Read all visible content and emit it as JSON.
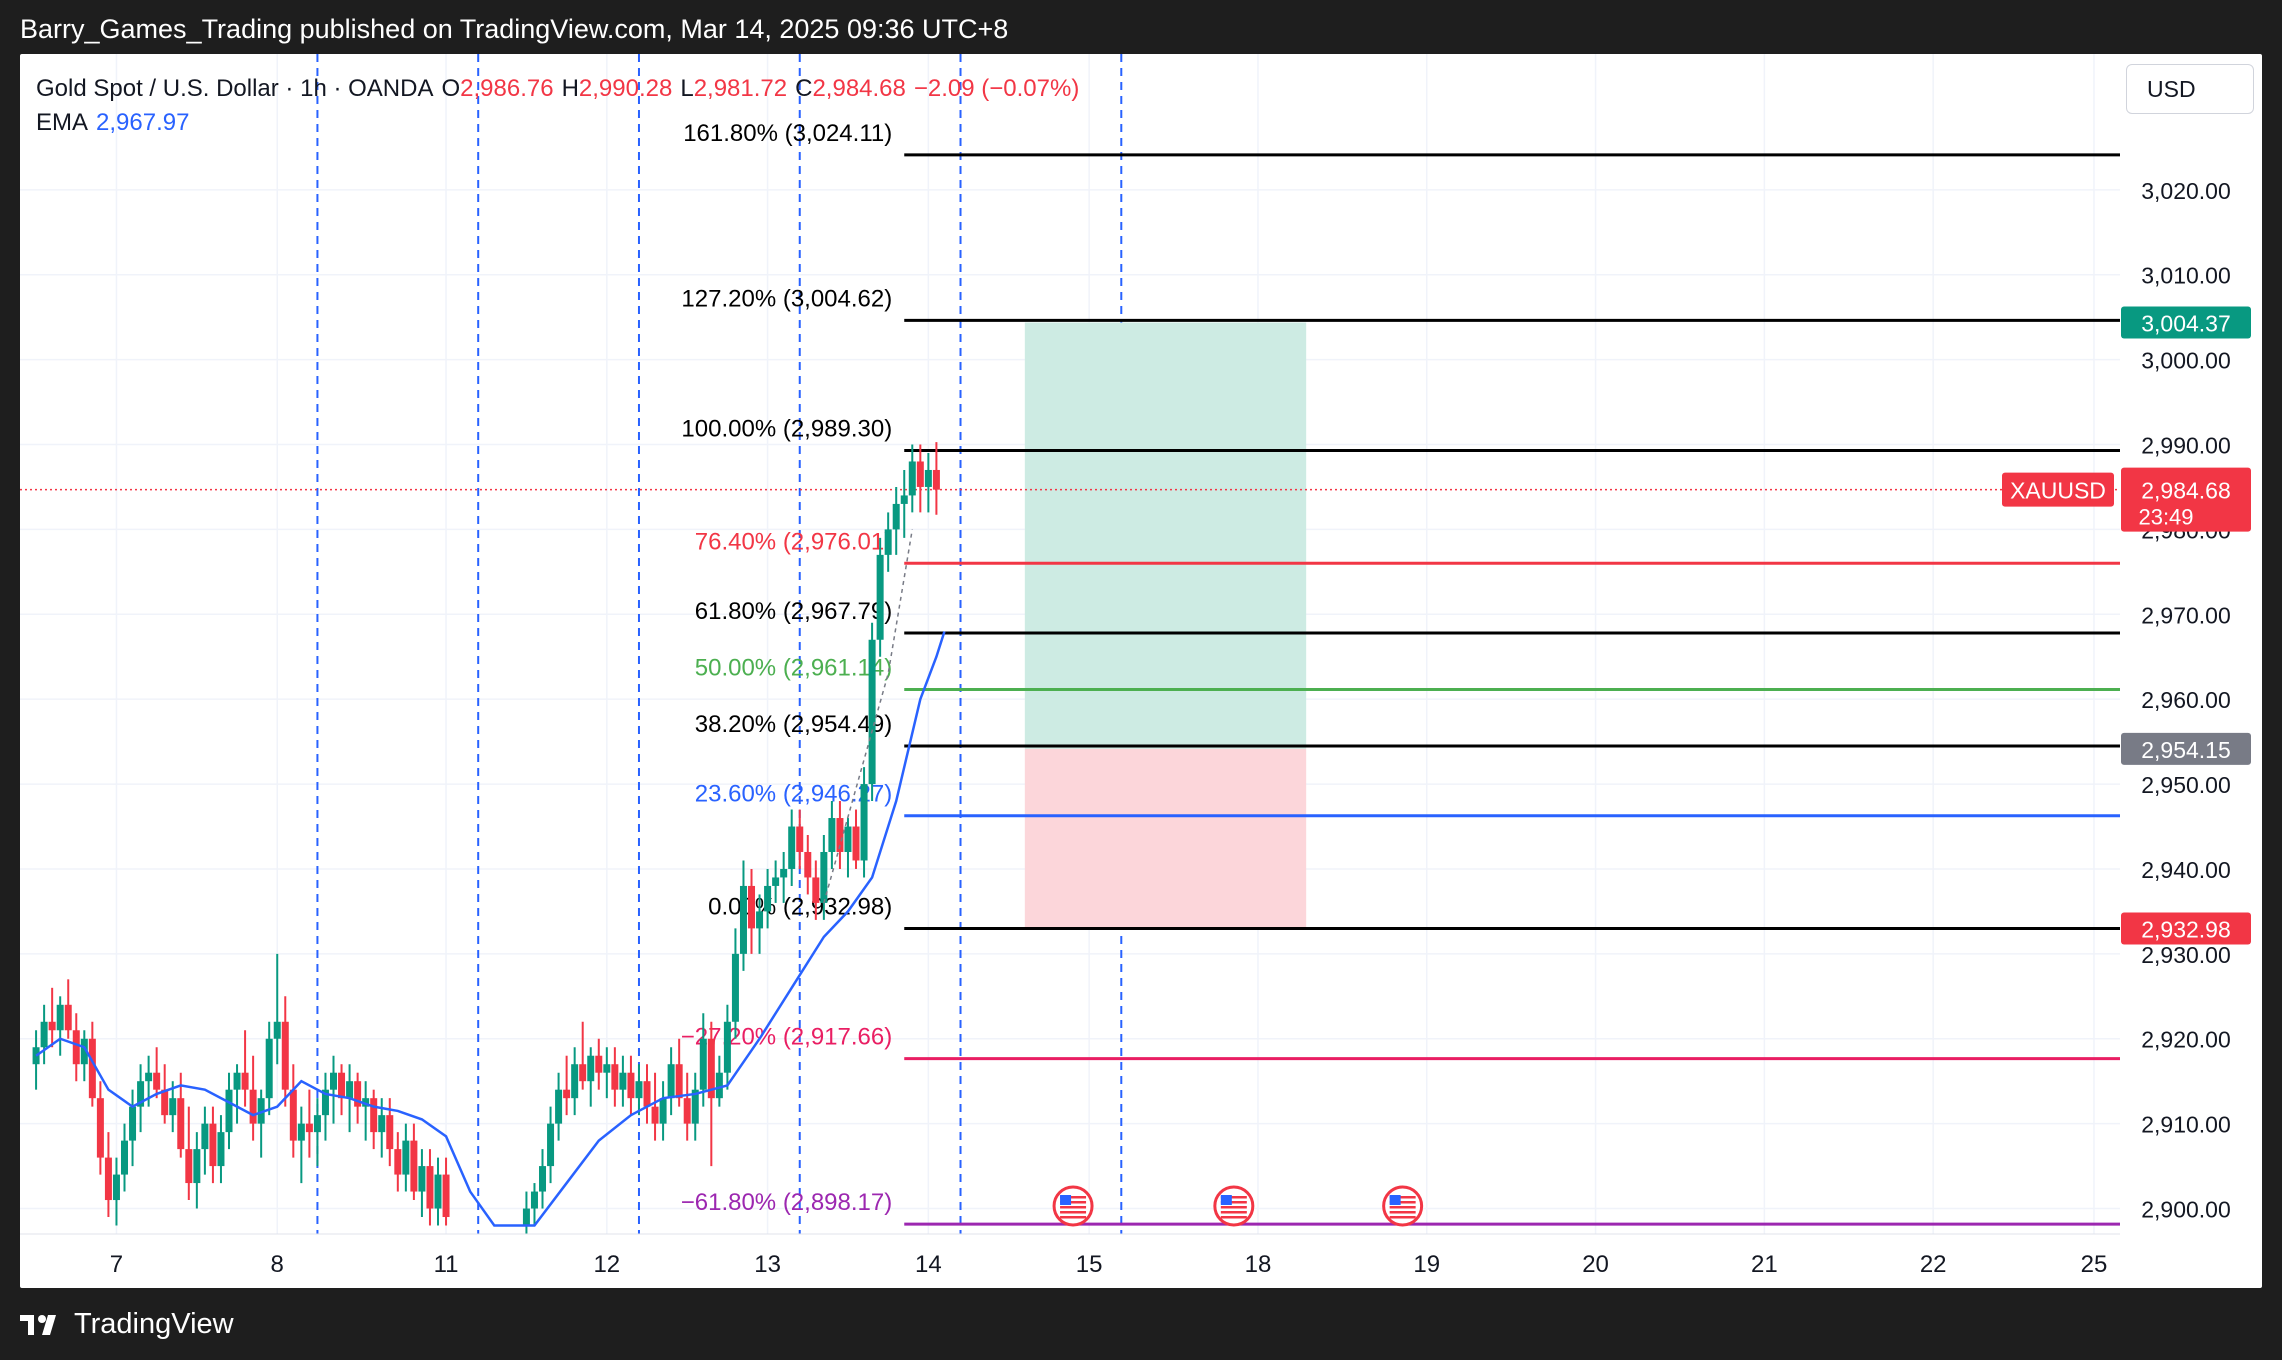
{
  "header": {
    "publisher_line": "Barry_Games_Trading published on TradingView.com, Mar 14, 2025 09:36 UTC+8"
  },
  "footer": {
    "brand": "TradingView"
  },
  "legend": {
    "symbol_line": "Gold Spot / U.S. Dollar · 1h · OANDA",
    "o_label": "O",
    "o_value": "2,986.76",
    "h_label": "H",
    "h_value": "2,990.28",
    "l_label": "L",
    "l_value": "2,981.72",
    "c_label": "C",
    "c_value": "2,984.68",
    "change": "−2.09 (−0.07%)",
    "ema_label": "EMA",
    "ema_value": "2,967.97"
  },
  "currency_button": "USD",
  "colors": {
    "up": "#089981",
    "down": "#f23645",
    "ema": "#2962ff",
    "profit_zone": "#cdebe3",
    "loss_zone": "#fcd6da",
    "grid": "#f0f3fa"
  },
  "chart_data": {
    "type": "candlestick",
    "symbol": "XAUUSD",
    "timeframe": "1h",
    "ylim": [
      2897,
      3036
    ],
    "y_ticks": [
      2900,
      2910,
      2920,
      2930,
      2940,
      2950,
      2960,
      2970,
      2980,
      2990,
      3000,
      3010,
      3020
    ],
    "y_tick_labels": [
      "2,900.00",
      "2,910.00",
      "2,920.00",
      "2,930.00",
      "2,940.00",
      "2,950.00",
      "2,960.00",
      "2,970.00",
      "2,980.00",
      "2,990.00",
      "3,000.00",
      "3,010.00",
      "3,020.00"
    ],
    "x_ticks": [
      {
        "label": "7",
        "t": 6.5
      },
      {
        "label": "8",
        "t": 7.5
      },
      {
        "label": "11",
        "t": 8.55
      },
      {
        "label": "12",
        "t": 9.55
      },
      {
        "label": "13",
        "t": 10.55
      },
      {
        "label": "14",
        "t": 11.55
      },
      {
        "label": "15",
        "t": 12.55
      },
      {
        "label": "18",
        "t": 13.6
      },
      {
        "label": "19",
        "t": 14.65
      },
      {
        "label": "20",
        "t": 15.7
      },
      {
        "label": "21",
        "t": 16.75
      },
      {
        "label": "22",
        "t": 17.8
      },
      {
        "label": "25",
        "t": 18.8
      }
    ],
    "session_breaks": [
      7.75,
      8.75,
      9.75,
      10.75,
      11.75,
      12.75
    ],
    "fibonacci": [
      {
        "label": "161.80% (3,024.11)",
        "value": 3024.11,
        "color": "#000000"
      },
      {
        "label": "127.20% (3,004.62)",
        "value": 3004.62,
        "color": "#000000"
      },
      {
        "label": "100.00% (2,989.30)",
        "value": 2989.3,
        "color": "#000000"
      },
      {
        "label": "76.40% (2,976.01)",
        "value": 2976.01,
        "color": "#f23645"
      },
      {
        "label": "61.80% (2,967.79)",
        "value": 2967.79,
        "color": "#000000"
      },
      {
        "label": "50.00% (2,961.14)",
        "value": 2961.14,
        "color": "#4caf50"
      },
      {
        "label": "38.20% (2,954.49)",
        "value": 2954.49,
        "color": "#000000"
      },
      {
        "label": "23.60% (2,946.27)",
        "value": 2946.27,
        "color": "#2962ff"
      },
      {
        "label": "0.00% (2,932.98)",
        "value": 2932.98,
        "color": "#000000"
      },
      {
        "label": "−27.20% (2,917.66)",
        "value": 2917.66,
        "color": "#e91e63"
      },
      {
        "label": "−61.80% (2,898.17)",
        "value": 2898.17,
        "color": "#9c27b0"
      }
    ],
    "position": {
      "type": "long",
      "entry": 2954.15,
      "target": 3004.37,
      "stop": 2932.98,
      "start_t": 12.15,
      "end_t": 13.9
    },
    "price_labels": [
      {
        "text": "3,004.37",
        "value": 3004.37,
        "color": "#089981"
      },
      {
        "text": "2,954.15",
        "value": 2954.15,
        "color": "#787b86"
      },
      {
        "text": "2,932.98",
        "value": 2932.98,
        "color": "#f23645"
      }
    ],
    "last_price": {
      "symbol": "XAUUSD",
      "text": "2,984.68",
      "countdown": "23:49",
      "value": 2984.68,
      "color": "#f23645"
    },
    "event_markers": [
      12.45,
      13.45,
      14.5
    ],
    "ema_points": [
      [
        6.0,
        2918
      ],
      [
        6.15,
        2920
      ],
      [
        6.3,
        2919
      ],
      [
        6.45,
        2914
      ],
      [
        6.6,
        2912
      ],
      [
        6.75,
        2913.5
      ],
      [
        6.9,
        2914.5
      ],
      [
        7.05,
        2914
      ],
      [
        7.2,
        2912.5
      ],
      [
        7.35,
        2911
      ],
      [
        7.5,
        2912
      ],
      [
        7.65,
        2915
      ],
      [
        7.8,
        2913.5
      ],
      [
        7.95,
        2913
      ],
      [
        8.1,
        2912
      ],
      [
        8.25,
        2911.5
      ],
      [
        8.4,
        2910.5
      ],
      [
        8.55,
        2908.5
      ],
      [
        8.7,
        2902
      ],
      [
        8.85,
        2898
      ],
      [
        9.1,
        2898
      ],
      [
        9.3,
        2903
      ],
      [
        9.5,
        2908
      ],
      [
        9.7,
        2911
      ],
      [
        9.9,
        2913
      ],
      [
        10.1,
        2913.5
      ],
      [
        10.3,
        2914.5
      ],
      [
        10.5,
        2920
      ],
      [
        10.7,
        2926
      ],
      [
        10.9,
        2932
      ],
      [
        11.05,
        2935
      ],
      [
        11.2,
        2939
      ],
      [
        11.35,
        2948
      ],
      [
        11.5,
        2960
      ],
      [
        11.6,
        2965
      ],
      [
        11.65,
        2967.97
      ]
    ],
    "dashed_projection": [
      [
        10.9,
        2936
      ],
      [
        11.3,
        2963
      ],
      [
        11.45,
        2980
      ]
    ],
    "candles": [
      {
        "t": 6.0,
        "o": 2917,
        "h": 2921,
        "l": 2914,
        "c": 2919
      },
      {
        "t": 6.05,
        "o": 2919,
        "h": 2924,
        "l": 2917,
        "c": 2922
      },
      {
        "t": 6.1,
        "o": 2922,
        "h": 2926,
        "l": 2919,
        "c": 2921
      },
      {
        "t": 6.15,
        "o": 2921,
        "h": 2925,
        "l": 2918,
        "c": 2924
      },
      {
        "t": 6.2,
        "o": 2924,
        "h": 2927,
        "l": 2920,
        "c": 2921
      },
      {
        "t": 6.25,
        "o": 2921,
        "h": 2923,
        "l": 2915,
        "c": 2917
      },
      {
        "t": 6.3,
        "o": 2917,
        "h": 2921,
        "l": 2915,
        "c": 2920
      },
      {
        "t": 6.35,
        "o": 2920,
        "h": 2922,
        "l": 2912,
        "c": 2913
      },
      {
        "t": 6.4,
        "o": 2913,
        "h": 2915,
        "l": 2904,
        "c": 2906
      },
      {
        "t": 6.45,
        "o": 2906,
        "h": 2909,
        "l": 2899,
        "c": 2901
      },
      {
        "t": 6.5,
        "o": 2901,
        "h": 2906,
        "l": 2898,
        "c": 2904
      },
      {
        "t": 6.55,
        "o": 2904,
        "h": 2910,
        "l": 2902,
        "c": 2908
      },
      {
        "t": 6.6,
        "o": 2908,
        "h": 2914,
        "l": 2905,
        "c": 2912
      },
      {
        "t": 6.65,
        "o": 2912,
        "h": 2917,
        "l": 2909,
        "c": 2915
      },
      {
        "t": 6.7,
        "o": 2915,
        "h": 2918,
        "l": 2912,
        "c": 2916
      },
      {
        "t": 6.75,
        "o": 2916,
        "h": 2919,
        "l": 2913,
        "c": 2914
      },
      {
        "t": 6.8,
        "o": 2914,
        "h": 2917,
        "l": 2910,
        "c": 2911
      },
      {
        "t": 6.85,
        "o": 2911,
        "h": 2915,
        "l": 2909,
        "c": 2913
      },
      {
        "t": 6.9,
        "o": 2913,
        "h": 2916,
        "l": 2906,
        "c": 2907
      },
      {
        "t": 6.95,
        "o": 2907,
        "h": 2912,
        "l": 2901,
        "c": 2903
      },
      {
        "t": 7.0,
        "o": 2903,
        "h": 2909,
        "l": 2900,
        "c": 2907
      },
      {
        "t": 7.05,
        "o": 2907,
        "h": 2912,
        "l": 2904,
        "c": 2910
      },
      {
        "t": 7.1,
        "o": 2910,
        "h": 2912,
        "l": 2903,
        "c": 2905
      },
      {
        "t": 7.15,
        "o": 2905,
        "h": 2911,
        "l": 2903,
        "c": 2909
      },
      {
        "t": 7.2,
        "o": 2909,
        "h": 2916,
        "l": 2907,
        "c": 2914
      },
      {
        "t": 7.25,
        "o": 2914,
        "h": 2917,
        "l": 2910,
        "c": 2916
      },
      {
        "t": 7.3,
        "o": 2916,
        "h": 2921,
        "l": 2912,
        "c": 2914
      },
      {
        "t": 7.35,
        "o": 2914,
        "h": 2918,
        "l": 2908,
        "c": 2910
      },
      {
        "t": 7.4,
        "o": 2910,
        "h": 2914,
        "l": 2906,
        "c": 2913
      },
      {
        "t": 7.45,
        "o": 2913,
        "h": 2922,
        "l": 2911,
        "c": 2920
      },
      {
        "t": 7.5,
        "o": 2920,
        "h": 2930,
        "l": 2917,
        "c": 2922
      },
      {
        "t": 7.55,
        "o": 2922,
        "h": 2925,
        "l": 2912,
        "c": 2914
      },
      {
        "t": 7.6,
        "o": 2914,
        "h": 2917,
        "l": 2906,
        "c": 2908
      },
      {
        "t": 7.65,
        "o": 2908,
        "h": 2912,
        "l": 2903,
        "c": 2910
      },
      {
        "t": 7.7,
        "o": 2910,
        "h": 2914,
        "l": 2906,
        "c": 2909
      },
      {
        "t": 7.75,
        "o": 2909,
        "h": 2913,
        "l": 2905,
        "c": 2911
      },
      {
        "t": 7.8,
        "o": 2911,
        "h": 2916,
        "l": 2908,
        "c": 2914
      },
      {
        "t": 7.85,
        "o": 2914,
        "h": 2918,
        "l": 2910,
        "c": 2916
      },
      {
        "t": 7.9,
        "o": 2916,
        "h": 2917,
        "l": 2911,
        "c": 2913
      },
      {
        "t": 7.95,
        "o": 2913,
        "h": 2917,
        "l": 2909,
        "c": 2915
      },
      {
        "t": 8.0,
        "o": 2915,
        "h": 2916,
        "l": 2910,
        "c": 2912
      },
      {
        "t": 8.05,
        "o": 2912,
        "h": 2915,
        "l": 2908,
        "c": 2913
      },
      {
        "t": 8.1,
        "o": 2913,
        "h": 2914,
        "l": 2907,
        "c": 2909
      },
      {
        "t": 8.15,
        "o": 2909,
        "h": 2913,
        "l": 2906,
        "c": 2911
      },
      {
        "t": 8.2,
        "o": 2911,
        "h": 2913,
        "l": 2905,
        "c": 2907
      },
      {
        "t": 8.25,
        "o": 2907,
        "h": 2909,
        "l": 2902,
        "c": 2904
      },
      {
        "t": 8.3,
        "o": 2904,
        "h": 2910,
        "l": 2902,
        "c": 2908
      },
      {
        "t": 8.35,
        "o": 2908,
        "h": 2910,
        "l": 2901,
        "c": 2902
      },
      {
        "t": 8.4,
        "o": 2902,
        "h": 2907,
        "l": 2899,
        "c": 2905
      },
      {
        "t": 8.45,
        "o": 2905,
        "h": 2907,
        "l": 2898,
        "c": 2900
      },
      {
        "t": 8.5,
        "o": 2900,
        "h": 2906,
        "l": 2898,
        "c": 2904
      },
      {
        "t": 8.55,
        "o": 2904,
        "h": 2906,
        "l": 2898,
        "c": 2899
      },
      {
        "t": 9.05,
        "o": 2898,
        "h": 2902,
        "l": 2897,
        "c": 2900
      },
      {
        "t": 9.1,
        "o": 2900,
        "h": 2903,
        "l": 2898,
        "c": 2902
      },
      {
        "t": 9.15,
        "o": 2902,
        "h": 2907,
        "l": 2900,
        "c": 2905
      },
      {
        "t": 9.2,
        "o": 2905,
        "h": 2912,
        "l": 2903,
        "c": 2910
      },
      {
        "t": 9.25,
        "o": 2910,
        "h": 2916,
        "l": 2908,
        "c": 2914
      },
      {
        "t": 9.3,
        "o": 2914,
        "h": 2918,
        "l": 2911,
        "c": 2913
      },
      {
        "t": 9.35,
        "o": 2913,
        "h": 2919,
        "l": 2911,
        "c": 2917
      },
      {
        "t": 9.4,
        "o": 2917,
        "h": 2922,
        "l": 2914,
        "c": 2915
      },
      {
        "t": 9.45,
        "o": 2915,
        "h": 2919,
        "l": 2912,
        "c": 2918
      },
      {
        "t": 9.5,
        "o": 2918,
        "h": 2920,
        "l": 2914,
        "c": 2916
      },
      {
        "t": 9.55,
        "o": 2916,
        "h": 2919,
        "l": 2913,
        "c": 2917
      },
      {
        "t": 9.6,
        "o": 2917,
        "h": 2919,
        "l": 2912,
        "c": 2914
      },
      {
        "t": 9.65,
        "o": 2914,
        "h": 2918,
        "l": 2912,
        "c": 2916
      },
      {
        "t": 9.7,
        "o": 2916,
        "h": 2918,
        "l": 2911,
        "c": 2913
      },
      {
        "t": 9.75,
        "o": 2913,
        "h": 2917,
        "l": 2911,
        "c": 2915
      },
      {
        "t": 9.8,
        "o": 2915,
        "h": 2917,
        "l": 2910,
        "c": 2912
      },
      {
        "t": 9.85,
        "o": 2912,
        "h": 2916,
        "l": 2908,
        "c": 2910
      },
      {
        "t": 9.9,
        "o": 2910,
        "h": 2915,
        "l": 2908,
        "c": 2913
      },
      {
        "t": 9.95,
        "o": 2913,
        "h": 2919,
        "l": 2911,
        "c": 2917
      },
      {
        "t": 10.0,
        "o": 2917,
        "h": 2920,
        "l": 2912,
        "c": 2913
      },
      {
        "t": 10.05,
        "o": 2913,
        "h": 2916,
        "l": 2908,
        "c": 2910
      },
      {
        "t": 10.1,
        "o": 2910,
        "h": 2916,
        "l": 2908,
        "c": 2914
      },
      {
        "t": 10.15,
        "o": 2914,
        "h": 2923,
        "l": 2912,
        "c": 2920
      },
      {
        "t": 10.2,
        "o": 2920,
        "h": 2922,
        "l": 2905,
        "c": 2913
      },
      {
        "t": 10.25,
        "o": 2913,
        "h": 2918,
        "l": 2912,
        "c": 2916
      },
      {
        "t": 10.3,
        "o": 2916,
        "h": 2924,
        "l": 2914,
        "c": 2922
      },
      {
        "t": 10.35,
        "o": 2922,
        "h": 2933,
        "l": 2920,
        "c": 2930
      },
      {
        "t": 10.4,
        "o": 2930,
        "h": 2941,
        "l": 2928,
        "c": 2938
      },
      {
        "t": 10.45,
        "o": 2938,
        "h": 2940,
        "l": 2930,
        "c": 2933
      },
      {
        "t": 10.5,
        "o": 2933,
        "h": 2937,
        "l": 2930,
        "c": 2935
      },
      {
        "t": 10.55,
        "o": 2935,
        "h": 2940,
        "l": 2933,
        "c": 2938
      },
      {
        "t": 10.6,
        "o": 2938,
        "h": 2941,
        "l": 2936,
        "c": 2939
      },
      {
        "t": 10.65,
        "o": 2939,
        "h": 2942,
        "l": 2936,
        "c": 2940
      },
      {
        "t": 10.7,
        "o": 2940,
        "h": 2947,
        "l": 2938,
        "c": 2945
      },
      {
        "t": 10.75,
        "o": 2945,
        "h": 2947,
        "l": 2940,
        "c": 2942
      },
      {
        "t": 10.8,
        "o": 2942,
        "h": 2944,
        "l": 2937,
        "c": 2939
      },
      {
        "t": 10.85,
        "o": 2939,
        "h": 2941,
        "l": 2934,
        "c": 2936
      },
      {
        "t": 10.9,
        "o": 2936,
        "h": 2944,
        "l": 2934,
        "c": 2942
      },
      {
        "t": 10.95,
        "o": 2942,
        "h": 2948,
        "l": 2940,
        "c": 2946
      },
      {
        "t": 11.0,
        "o": 2946,
        "h": 2948,
        "l": 2940,
        "c": 2942
      },
      {
        "t": 11.05,
        "o": 2942,
        "h": 2946,
        "l": 2939,
        "c": 2945
      },
      {
        "t": 11.1,
        "o": 2945,
        "h": 2947,
        "l": 2940,
        "c": 2941
      },
      {
        "t": 11.15,
        "o": 2941,
        "h": 2952,
        "l": 2939,
        "c": 2950
      },
      {
        "t": 11.2,
        "o": 2950,
        "h": 2969,
        "l": 2948,
        "c": 2967
      },
      {
        "t": 11.25,
        "o": 2967,
        "h": 2979,
        "l": 2965,
        "c": 2977
      },
      {
        "t": 11.3,
        "o": 2977,
        "h": 2982,
        "l": 2975,
        "c": 2980
      },
      {
        "t": 11.35,
        "o": 2980,
        "h": 2985,
        "l": 2977,
        "c": 2983
      },
      {
        "t": 11.4,
        "o": 2983,
        "h": 2987,
        "l": 2979,
        "c": 2984
      },
      {
        "t": 11.45,
        "o": 2984,
        "h": 2990,
        "l": 2982,
        "c": 2988
      },
      {
        "t": 11.5,
        "o": 2988,
        "h": 2990,
        "l": 2982,
        "c": 2985
      },
      {
        "t": 11.55,
        "o": 2985,
        "h": 2989,
        "l": 2982,
        "c": 2987
      },
      {
        "t": 11.6,
        "o": 2987,
        "h": 2990.28,
        "l": 2981.72,
        "c": 2984.68
      }
    ]
  }
}
